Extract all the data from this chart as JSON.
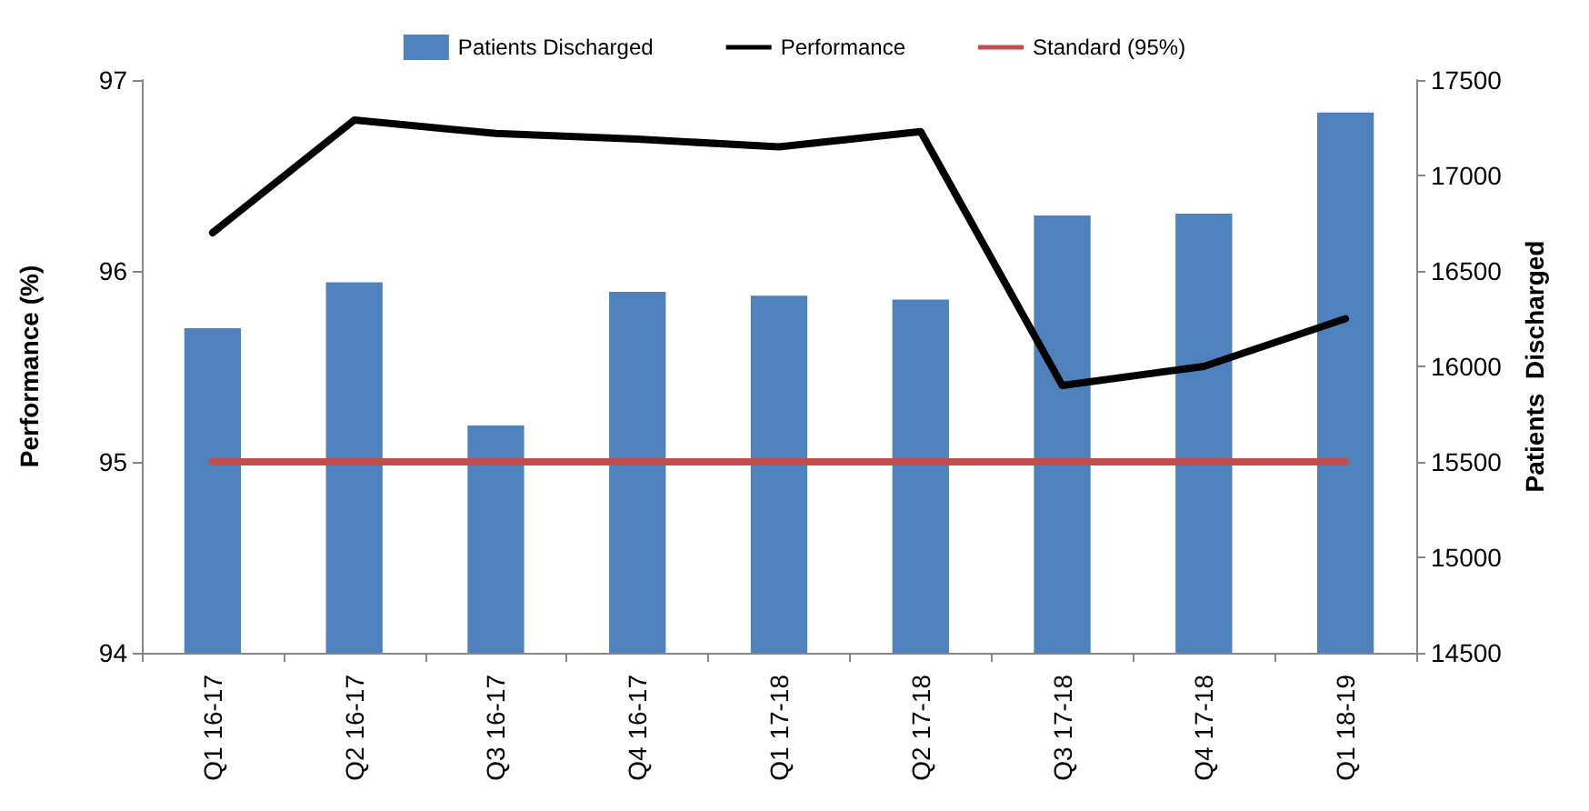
{
  "chart_data": {
    "type": "bar",
    "categories": [
      "Q1 16-17",
      "Q2 16-17",
      "Q3 16-17",
      "Q4 16-17",
      "Q1 17-18",
      "Q2 17-18",
      "Q3 17-18",
      "Q4 17-18",
      "Q1 18-19"
    ],
    "ylabel": "Performance (%)",
    "y2label": "Patients  Discharged",
    "ylim": [
      94,
      97
    ],
    "yticks": [
      94,
      95,
      96,
      97
    ],
    "y2lim": [
      14500,
      17500
    ],
    "y2ticks": [
      14500,
      15000,
      15500,
      16000,
      16500,
      17000,
      17500
    ],
    "series": [
      {
        "name": "Patients Discharged",
        "axis": "y2",
        "color": "#4f81bd",
        "values": [
          16200,
          16440,
          15690,
          16390,
          16370,
          16350,
          16790,
          16800,
          17330
        ]
      },
      {
        "name": "Performance",
        "type": "line",
        "color": "#000000",
        "values": [
          96.2,
          96.79,
          96.72,
          96.69,
          96.65,
          96.73,
          95.4,
          95.5,
          95.75
        ]
      },
      {
        "name": "Standard (95%)",
        "type": "line",
        "color": "#c0504d",
        "values": [
          95,
          95,
          95,
          95,
          95,
          95,
          95,
          95,
          95
        ]
      }
    ],
    "legend": "top",
    "grid": false,
    "marker": "none",
    "line_style": "solid"
  }
}
